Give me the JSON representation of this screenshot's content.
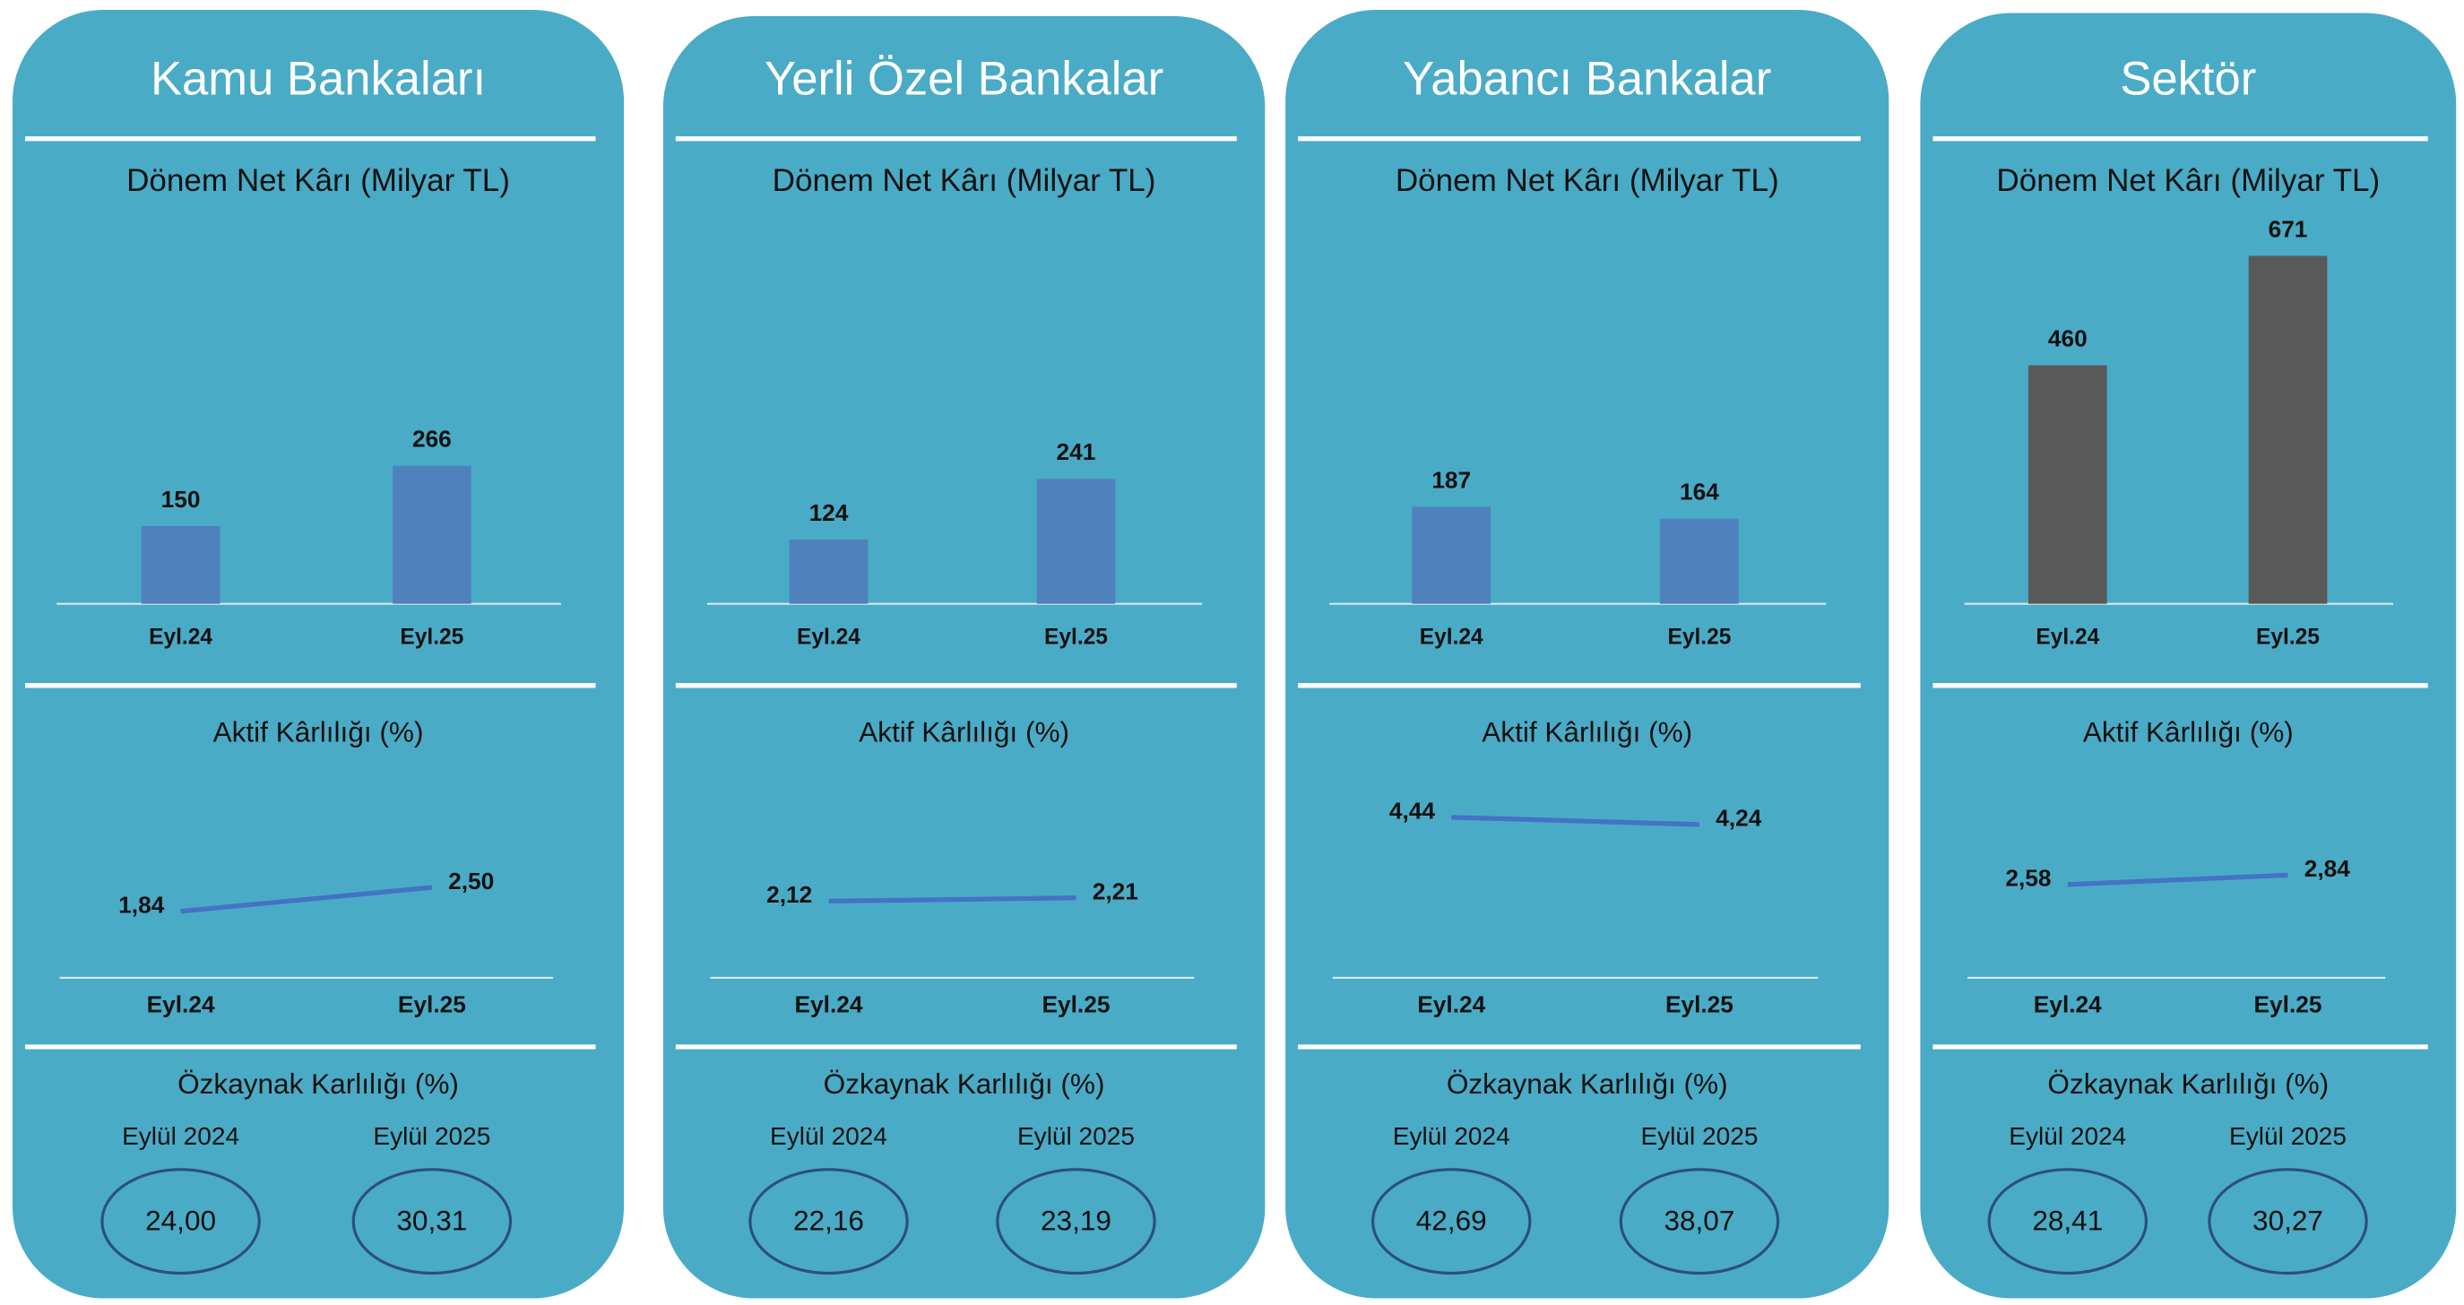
{
  "panels": [
    {
      "title": "Kamu Bankaları",
      "roe_title": "Özkaynak Karlılığı (%)",
      "roe_categories": [
        "Eylül 2024",
        "Eylül 2025"
      ],
      "roe_values": [
        "24,00",
        "30,31"
      ]
    },
    {
      "title": "Yerli Özel Bankalar",
      "roe_title": "Özkaynak Karlılığı (%)",
      "roe_categories": [
        "Eylül 2024",
        "Eylül 2025"
      ],
      "roe_values": [
        "22,16",
        "23,19"
      ]
    },
    {
      "title": "Yabancı Bankalar",
      "roe_title": "Özkaynak Karlılığı (%)",
      "roe_categories": [
        "Eylül 2024",
        "Eylül 2025"
      ],
      "roe_values": [
        "42,69",
        "38,07"
      ]
    },
    {
      "title": "Sektör",
      "roe_title": "Özkaynak Karlılığı (%)",
      "roe_categories": [
        "Eylül 2024",
        "Eylül 2025"
      ],
      "roe_values": [
        "28,41",
        "30,27"
      ]
    }
  ],
  "chart_data": [
    {
      "type": "bar",
      "title": "Dönem Net Kârı (Milyar TL)",
      "categories": [
        "Eyl.24",
        "Eyl.25"
      ],
      "values": [
        150,
        266
      ],
      "color": "#4f81bd"
    },
    {
      "type": "line",
      "title": "Aktif Kârlılığı (%)",
      "categories": [
        "Eyl.24",
        "Eyl.25"
      ],
      "values": [
        1.84,
        2.5
      ],
      "value_labels": [
        "1,84",
        "2,50"
      ],
      "color": "#4472c4"
    },
    {
      "type": "bar",
      "title": "Dönem Net Kârı (Milyar TL)",
      "categories": [
        "Eyl.24",
        "Eyl.25"
      ],
      "values": [
        124,
        241
      ],
      "color": "#4f81bd"
    },
    {
      "type": "line",
      "title": "Aktif Kârlılığı (%)",
      "categories": [
        "Eyl.24",
        "Eyl.25"
      ],
      "values": [
        2.12,
        2.21
      ],
      "value_labels": [
        "2,12",
        "2,21"
      ],
      "color": "#4472c4"
    },
    {
      "type": "bar",
      "title": "Dönem Net Kârı (Milyar TL)",
      "categories": [
        "Eyl.24",
        "Eyl.25"
      ],
      "values": [
        187,
        164
      ],
      "color": "#4f81bd"
    },
    {
      "type": "line",
      "title": "Aktif Kârlılığı (%)",
      "categories": [
        "Eyl.24",
        "Eyl.25"
      ],
      "values": [
        4.44,
        4.24
      ],
      "value_labels": [
        "4,44",
        "4,24"
      ],
      "color": "#4472c4"
    },
    {
      "type": "bar",
      "title": "Dönem Net Kârı (Milyar TL)",
      "categories": [
        "Eyl.24",
        "Eyl.25"
      ],
      "values": [
        460,
        671
      ],
      "color": "#595959"
    },
    {
      "type": "line",
      "title": "Aktif Kârlılığı (%)",
      "categories": [
        "Eyl.24",
        "Eyl.25"
      ],
      "values": [
        2.58,
        2.84
      ],
      "value_labels": [
        "2,58",
        "2,84"
      ],
      "color": "#4472c4"
    }
  ]
}
